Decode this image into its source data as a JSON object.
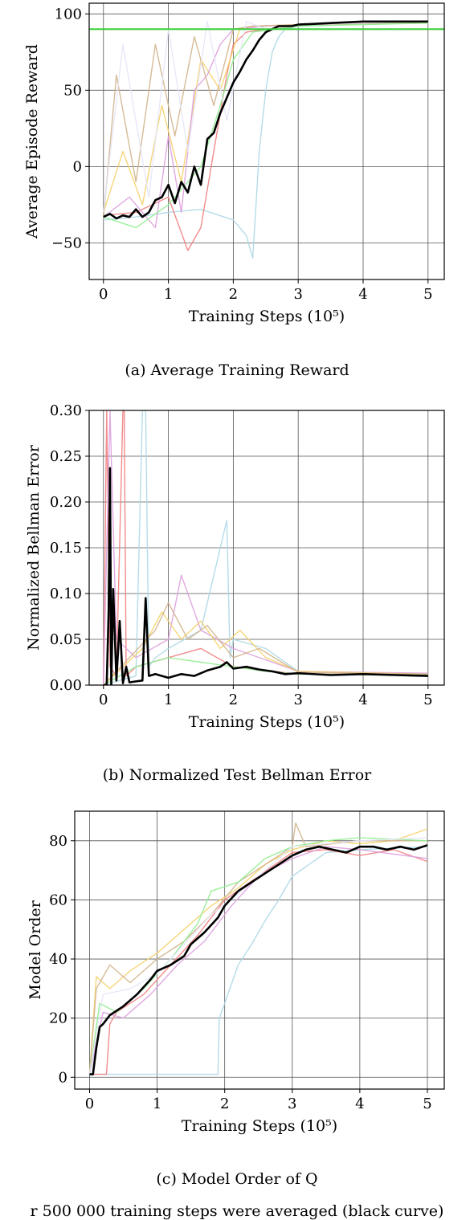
{
  "chart_data": [
    {
      "type": "line",
      "caption": "(a) Average Training Reward",
      "xlabel": "Training Steps (10⁵)",
      "ylabel": "Average Episode Reward",
      "xlim": [
        -0.22,
        5.25
      ],
      "ylim": [
        -74,
        107
      ],
      "xticks": [
        0,
        1,
        2,
        3,
        4,
        5
      ],
      "yticks": [
        -50,
        0,
        50,
        100
      ],
      "ytick_labels": [
        "−50",
        "0",
        "50",
        "100"
      ],
      "grid": true,
      "reference_line": {
        "y": 90,
        "color": "#3ecf3e"
      },
      "series": [
        {
          "role": "average",
          "color": "#000000",
          "x": [
            0,
            0.1,
            0.2,
            0.3,
            0.4,
            0.5,
            0.6,
            0.7,
            0.8,
            0.9,
            1.0,
            1.1,
            1.2,
            1.3,
            1.4,
            1.5,
            1.6,
            1.7,
            1.8,
            1.9,
            2.0,
            2.1,
            2.2,
            2.3,
            2.4,
            2.5,
            2.6,
            2.7,
            2.8,
            2.9,
            3.0,
            3.5,
            4.0,
            4.5,
            5.0
          ],
          "y": [
            -33,
            -31,
            -34,
            -32,
            -33,
            -28,
            -33,
            -30,
            -22,
            -20,
            -12,
            -24,
            -10,
            -17,
            0,
            -12,
            18,
            22,
            35,
            45,
            55,
            62,
            70,
            76,
            83,
            88,
            90,
            92,
            92,
            92,
            93,
            94,
            95,
            95,
            95
          ]
        },
        {
          "role": "run",
          "color": "#add8e6",
          "x": [
            0,
            0.5,
            1.0,
            1.5,
            2.0,
            2.2,
            2.3,
            2.4,
            2.5,
            2.6,
            2.7,
            2.8,
            3.0,
            4.0,
            5.0
          ],
          "y": [
            -35,
            -33,
            -30,
            -28,
            -35,
            -45,
            -60,
            10,
            50,
            75,
            85,
            90,
            92,
            94,
            95
          ]
        },
        {
          "role": "run",
          "color": "#f08080",
          "x": [
            0,
            0.5,
            1.0,
            1.3,
            1.5,
            1.7,
            1.9,
            2.0,
            2.2,
            2.5,
            3.0,
            5.0
          ],
          "y": [
            -32,
            -30,
            -20,
            -55,
            -40,
            10,
            60,
            80,
            88,
            90,
            93,
            94
          ]
        },
        {
          "role": "run",
          "color": "#f5d26b",
          "x": [
            0,
            0.3,
            0.6,
            0.9,
            1.2,
            1.5,
            1.8,
            2.1,
            2.4,
            3.0,
            5.0
          ],
          "y": [
            -30,
            10,
            -25,
            40,
            -10,
            70,
            50,
            90,
            92,
            93,
            95
          ]
        },
        {
          "role": "run",
          "color": "#dda0dd",
          "x": [
            0,
            0.4,
            0.8,
            1.0,
            1.2,
            1.4,
            1.6,
            1.8,
            2.0,
            2.5,
            3.0,
            5.0
          ],
          "y": [
            -33,
            -20,
            -40,
            20,
            -30,
            50,
            60,
            80,
            90,
            92,
            93,
            94
          ]
        },
        {
          "role": "run",
          "color": "#d2b48c",
          "x": [
            0,
            0.2,
            0.5,
            0.8,
            1.1,
            1.4,
            1.7,
            2.0,
            2.3,
            3.0,
            5.0
          ],
          "y": [
            -34,
            60,
            -10,
            80,
            20,
            85,
            40,
            90,
            92,
            93,
            94
          ]
        },
        {
          "role": "run",
          "color": "#90ee90",
          "x": [
            0,
            0.5,
            1.0,
            1.5,
            1.8,
            2.0,
            2.3,
            3.0,
            5.0
          ],
          "y": [
            -33,
            -40,
            -25,
            0,
            40,
            70,
            88,
            92,
            94
          ]
        },
        {
          "role": "run",
          "color": "#e6e6fa",
          "x": [
            0,
            0.3,
            0.7,
            1.0,
            1.3,
            1.6,
            1.9,
            2.2,
            2.5,
            3.0,
            5.0
          ],
          "y": [
            -30,
            80,
            -20,
            90,
            10,
            95,
            30,
            95,
            90,
            93,
            95
          ]
        }
      ]
    },
    {
      "type": "line",
      "caption": "(b) Normalized Test Bellman Error",
      "xlabel": "Training Steps (10⁵)",
      "ylabel": "Normalized Bellman Error",
      "xlim": [
        -0.22,
        5.25
      ],
      "ylim": [
        0,
        0.3
      ],
      "xticks": [
        0,
        1,
        2,
        3,
        4,
        5
      ],
      "yticks": [
        0,
        0.05,
        0.1,
        0.15,
        0.2,
        0.25,
        0.3
      ],
      "ytick_labels": [
        "0.00",
        "0.05",
        "0.10",
        "0.15",
        "0.20",
        "0.25",
        "0.30"
      ],
      "grid": true,
      "series": [
        {
          "role": "average",
          "color": "#000000",
          "x": [
            0,
            0.05,
            0.08,
            0.1,
            0.12,
            0.15,
            0.2,
            0.25,
            0.3,
            0.35,
            0.4,
            0.5,
            0.6,
            0.65,
            0.7,
            0.8,
            0.9,
            1.0,
            1.2,
            1.4,
            1.6,
            1.8,
            1.9,
            2.0,
            2.2,
            2.4,
            2.6,
            2.8,
            3.0,
            3.5,
            4.0,
            4.5,
            5.0
          ],
          "y": [
            0,
            0.0,
            0.08,
            0.237,
            0.0,
            0.105,
            0.005,
            0.07,
            0.002,
            0.02,
            0.003,
            0.004,
            0.005,
            0.095,
            0.01,
            0.012,
            0.01,
            0.008,
            0.012,
            0.01,
            0.016,
            0.02,
            0.025,
            0.018,
            0.02,
            0.017,
            0.015,
            0.012,
            0.013,
            0.011,
            0.012,
            0.011,
            0.01
          ]
        },
        {
          "role": "run",
          "color": "#f08080",
          "x": [
            0,
            0.05,
            0.1,
            0.2,
            0.3,
            0.32,
            0.35,
            0.5,
            1.0,
            1.5,
            2.0,
            3.0,
            5.0
          ],
          "y": [
            0,
            0.3,
            0.02,
            0.01,
            0.3,
            0.3,
            0.01,
            0.02,
            0.03,
            0.04,
            0.02,
            0.012,
            0.012
          ]
        },
        {
          "role": "run",
          "color": "#add8e6",
          "x": [
            0,
            0.5,
            0.6,
            0.65,
            0.7,
            0.8,
            1.0,
            1.5,
            1.9,
            1.95,
            2.0,
            2.5,
            3.0,
            4.0,
            5.0
          ],
          "y": [
            0,
            0.01,
            0.3,
            0.3,
            0.02,
            0.03,
            0.04,
            0.06,
            0.18,
            0.03,
            0.05,
            0.04,
            0.015,
            0.013,
            0.012
          ]
        },
        {
          "role": "run",
          "color": "#dda0dd",
          "x": [
            0,
            0.1,
            0.2,
            0.5,
            1.0,
            1.2,
            1.5,
            2.0,
            3.0,
            5.0
          ],
          "y": [
            0,
            0.3,
            0.05,
            0.03,
            0.05,
            0.12,
            0.06,
            0.04,
            0.015,
            0.013
          ]
        },
        {
          "role": "run",
          "color": "#f5d26b",
          "x": [
            0,
            0.3,
            0.6,
            0.9,
            1.2,
            1.5,
            1.8,
            2.1,
            2.5,
            3.0,
            5.0
          ],
          "y": [
            0,
            0.02,
            0.04,
            0.08,
            0.05,
            0.07,
            0.04,
            0.06,
            0.03,
            0.015,
            0.012
          ]
        },
        {
          "role": "run",
          "color": "#d2b48c",
          "x": [
            0,
            0.4,
            0.8,
            1.0,
            1.3,
            1.6,
            2.0,
            2.4,
            3.0,
            5.0
          ],
          "y": [
            0,
            0.03,
            0.06,
            0.09,
            0.05,
            0.065,
            0.03,
            0.04,
            0.014,
            0.012
          ]
        },
        {
          "role": "run",
          "color": "#90ee90",
          "x": [
            0,
            0.5,
            1.0,
            1.5,
            2.0,
            2.5,
            3.0,
            5.0
          ],
          "y": [
            0,
            0.02,
            0.03,
            0.025,
            0.02,
            0.015,
            0.012,
            0.011
          ]
        }
      ]
    },
    {
      "type": "line",
      "caption": "(c) Model Order of Q",
      "xlabel": "Training Steps (10⁵)",
      "ylabel": "Model Order",
      "xlim": [
        -0.22,
        5.25
      ],
      "ylim": [
        -4,
        90
      ],
      "xticks": [
        0,
        1,
        2,
        3,
        4,
        5
      ],
      "yticks": [
        0,
        20,
        40,
        60,
        80
      ],
      "ytick_labels": [
        "0",
        "20",
        "40",
        "60",
        "80"
      ],
      "grid": true,
      "series": [
        {
          "role": "average",
          "color": "#000000",
          "x": [
            0,
            0.05,
            0.1,
            0.15,
            0.2,
            0.3,
            0.5,
            0.7,
            0.9,
            1.0,
            1.2,
            1.4,
            1.5,
            1.7,
            1.9,
            2.0,
            2.2,
            2.4,
            2.6,
            2.8,
            3.0,
            3.2,
            3.4,
            3.6,
            3.8,
            4.0,
            4.2,
            4.4,
            4.6,
            4.8,
            5.0
          ],
          "y": [
            1,
            1,
            10,
            17,
            18,
            21,
            24,
            28,
            33,
            36,
            38,
            41,
            45,
            49,
            54,
            58,
            63,
            66,
            69,
            72,
            75,
            77,
            78,
            77,
            76,
            78,
            78,
            77,
            78,
            77,
            78.5
          ]
        },
        {
          "role": "run",
          "color": "#add8e6",
          "x": [
            0,
            0.5,
            1.0,
            1.5,
            1.9,
            1.92,
            2.0,
            2.2,
            2.4,
            2.6,
            2.8,
            3.0,
            3.5,
            4.0,
            5.0
          ],
          "y": [
            1,
            1,
            1,
            1,
            1,
            20,
            25,
            38,
            45,
            53,
            60,
            68,
            76,
            77,
            78
          ]
        },
        {
          "role": "run",
          "color": "#f08080",
          "x": [
            0,
            0.25,
            0.3,
            0.4,
            0.8,
            1.2,
            1.6,
            2.0,
            2.5,
            3.0,
            3.5,
            4.0,
            4.5,
            5.0
          ],
          "y": [
            1,
            1,
            18,
            22,
            28,
            38,
            48,
            60,
            68,
            76,
            77,
            75,
            77,
            73
          ]
        },
        {
          "role": "run",
          "color": "#f5d26b",
          "x": [
            0,
            0.1,
            0.3,
            0.6,
            1.0,
            1.4,
            1.8,
            2.2,
            2.6,
            3.0,
            3.5,
            4.0,
            4.5,
            5.0
          ],
          "y": [
            1,
            34,
            30,
            36,
            42,
            50,
            58,
            64,
            72,
            77,
            80,
            79,
            80,
            84
          ]
        },
        {
          "role": "run",
          "color": "#d2b48c",
          "x": [
            0,
            0.1,
            0.3,
            0.6,
            1.0,
            1.4,
            1.8,
            2.2,
            2.6,
            3.0,
            3.05,
            3.2,
            4.0,
            5.0
          ],
          "y": [
            1,
            30,
            38,
            32,
            40,
            46,
            55,
            66,
            72,
            78,
            86,
            78,
            80,
            80
          ]
        },
        {
          "role": "run",
          "color": "#90ee90",
          "x": [
            0,
            0.15,
            0.4,
            0.8,
            1.2,
            1.6,
            1.8,
            2.2,
            2.6,
            3.0,
            3.5,
            4.0,
            5.0
          ],
          "y": [
            1,
            25,
            22,
            30,
            40,
            52,
            63,
            66,
            74,
            78,
            80,
            81,
            80
          ]
        },
        {
          "role": "run",
          "color": "#dda0dd",
          "x": [
            0,
            0.2,
            0.5,
            0.9,
            1.3,
            1.7,
            2.1,
            2.5,
            3.0,
            3.5,
            4.0,
            5.0
          ],
          "y": [
            1,
            22,
            20,
            28,
            38,
            46,
            58,
            68,
            74,
            78,
            77,
            74
          ]
        },
        {
          "role": "run",
          "color": "#e6e6fa",
          "x": [
            0,
            0.2,
            0.6,
            1.0,
            1.4,
            1.8,
            2.2,
            2.6,
            3.0,
            4.0,
            5.0
          ],
          "y": [
            1,
            28,
            30,
            35,
            45,
            55,
            62,
            70,
            78,
            80,
            81
          ]
        }
      ]
    }
  ],
  "footer_text": "r 500 000 training steps were averaged (black curve)"
}
